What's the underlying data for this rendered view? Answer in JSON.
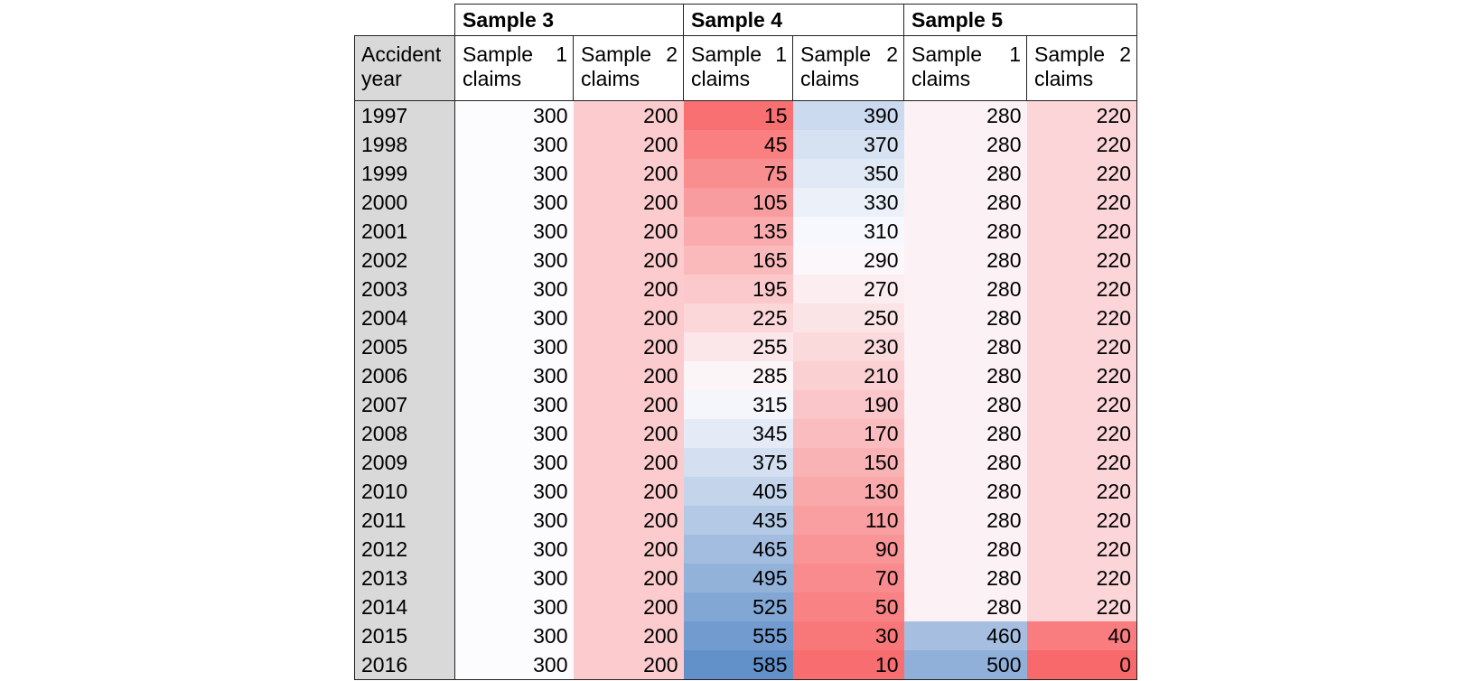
{
  "groups": [
    "Sample 3",
    "Sample 4",
    "Sample 5"
  ],
  "row_header_lines": [
    "Accident",
    "year"
  ],
  "sub_headers": [
    {
      "a": "Sample",
      "b": "1",
      "c": "claims"
    },
    {
      "a": "Sample",
      "b": "2",
      "c": "claims"
    },
    {
      "a": "Sample",
      "b": "1",
      "c": "claims"
    },
    {
      "a": "Sample",
      "b": "2",
      "c": "claims"
    },
    {
      "a": "Sample",
      "b": "1",
      "c": "claims"
    },
    {
      "a": "Sample",
      "b": "2",
      "c": "claims"
    }
  ],
  "rows": [
    {
      "year": "1997",
      "v": [
        "300",
        "200",
        "15",
        "390",
        "280",
        "220"
      ]
    },
    {
      "year": "1998",
      "v": [
        "300",
        "200",
        "45",
        "370",
        "280",
        "220"
      ]
    },
    {
      "year": "1999",
      "v": [
        "300",
        "200",
        "75",
        "350",
        "280",
        "220"
      ]
    },
    {
      "year": "2000",
      "v": [
        "300",
        "200",
        "105",
        "330",
        "280",
        "220"
      ]
    },
    {
      "year": "2001",
      "v": [
        "300",
        "200",
        "135",
        "310",
        "280",
        "220"
      ]
    },
    {
      "year": "2002",
      "v": [
        "300",
        "200",
        "165",
        "290",
        "280",
        "220"
      ]
    },
    {
      "year": "2003",
      "v": [
        "300",
        "200",
        "195",
        "270",
        "280",
        "220"
      ]
    },
    {
      "year": "2004",
      "v": [
        "300",
        "200",
        "225",
        "250",
        "280",
        "220"
      ]
    },
    {
      "year": "2005",
      "v": [
        "300",
        "200",
        "255",
        "230",
        "280",
        "220"
      ]
    },
    {
      "year": "2006",
      "v": [
        "300",
        "200",
        "285",
        "210",
        "280",
        "220"
      ]
    },
    {
      "year": "2007",
      "v": [
        "300",
        "200",
        "315",
        "190",
        "280",
        "220"
      ]
    },
    {
      "year": "2008",
      "v": [
        "300",
        "200",
        "345",
        "170",
        "280",
        "220"
      ]
    },
    {
      "year": "2009",
      "v": [
        "300",
        "200",
        "375",
        "150",
        "280",
        "220"
      ]
    },
    {
      "year": "2010",
      "v": [
        "300",
        "200",
        "405",
        "130",
        "280",
        "220"
      ]
    },
    {
      "year": "2011",
      "v": [
        "300",
        "200",
        "435",
        "110",
        "280",
        "220"
      ]
    },
    {
      "year": "2012",
      "v": [
        "300",
        "200",
        "465",
        "90",
        "280",
        "220"
      ]
    },
    {
      "year": "2013",
      "v": [
        "300",
        "200",
        "495",
        "70",
        "280",
        "220"
      ]
    },
    {
      "year": "2014",
      "v": [
        "300",
        "200",
        "525",
        "50",
        "280",
        "220"
      ]
    },
    {
      "year": "2015",
      "v": [
        "300",
        "200",
        "555",
        "30",
        "460",
        "40"
      ]
    },
    {
      "year": "2016",
      "v": [
        "300",
        "200",
        "585",
        "10",
        "500",
        "0"
      ]
    }
  ],
  "heat_colors": {
    "blue_max": "#5a8ac6",
    "mid": "#fcfcff",
    "red_max": "#f8696b"
  }
}
